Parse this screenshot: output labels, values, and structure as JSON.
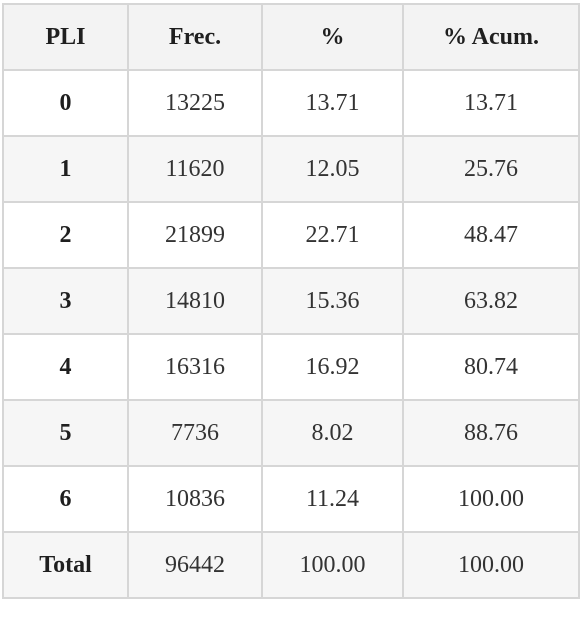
{
  "table": {
    "headers": [
      "PLI",
      "Frec.",
      "%",
      "% Acum."
    ],
    "rows": [
      {
        "label": "0",
        "frec": "13225",
        "pct": "13.71",
        "acum": "13.71"
      },
      {
        "label": "1",
        "frec": "11620",
        "pct": "12.05",
        "acum": "25.76"
      },
      {
        "label": "2",
        "frec": "21899",
        "pct": "22.71",
        "acum": "48.47"
      },
      {
        "label": "3",
        "frec": "14810",
        "pct": "15.36",
        "acum": "63.82"
      },
      {
        "label": "4",
        "frec": "16316",
        "pct": "16.92",
        "acum": "80.74"
      },
      {
        "label": "5",
        "frec": "7736",
        "pct": "8.02",
        "acum": "88.76"
      },
      {
        "label": "6",
        "frec": "10836",
        "pct": "11.24",
        "acum": "100.00"
      },
      {
        "label": "Total",
        "frec": "96442",
        "pct": "100.00",
        "acum": "100.00"
      }
    ]
  }
}
